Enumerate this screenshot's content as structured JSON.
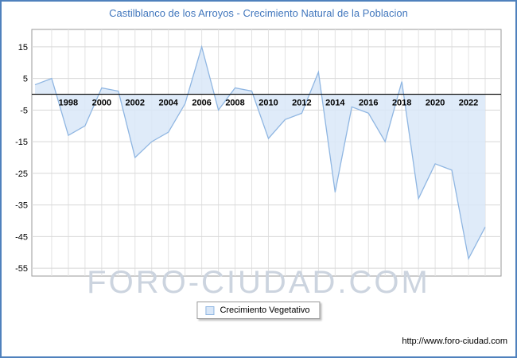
{
  "watermark": "FORO-CIUDAD.COM",
  "source_url": "http://www.foro-ciudad.com",
  "colors": {
    "frame_border": "#4f81bd",
    "title": "#4277bd",
    "area_fill": "#d9e7f8",
    "line": "#8fb6e2",
    "grid_v": "#e2e2e2",
    "grid_h": "#d8d8d8",
    "axis": "#1a1a1a",
    "plot_border": "#9a9a9a",
    "watermark": "#ccd4df",
    "tick_text": "#000000"
  },
  "chart_data": {
    "type": "area",
    "title": "Castilblanco de los Arroyos - Crecimiento Natural de la Poblacion",
    "legend_label": "Crecimiento Vegetativo",
    "legend_position": "bottom",
    "grid": true,
    "baseline": 0,
    "x": [
      1996,
      1997,
      1998,
      1999,
      2000,
      2001,
      2002,
      2003,
      2004,
      2005,
      2006,
      2007,
      2008,
      2009,
      2010,
      2011,
      2012,
      2013,
      2014,
      2015,
      2016,
      2017,
      2018,
      2019,
      2020,
      2021,
      2022,
      2023
    ],
    "values": [
      3,
      5,
      -13,
      -10,
      2,
      1,
      -20,
      -15,
      -12,
      -3,
      15,
      -5,
      2,
      1,
      -14,
      -8,
      -6,
      7,
      -31,
      -4,
      -6,
      -15,
      4,
      -33,
      -22,
      -24,
      -52,
      -42
    ],
    "ylim": [
      -57.5,
      20.5
    ],
    "yticks": [
      15,
      5,
      -5,
      -15,
      -25,
      -35,
      -45,
      -55
    ],
    "xticks": [
      1998,
      2000,
      2002,
      2004,
      2006,
      2008,
      2010,
      2012,
      2014,
      2016,
      2018,
      2020,
      2022
    ]
  }
}
